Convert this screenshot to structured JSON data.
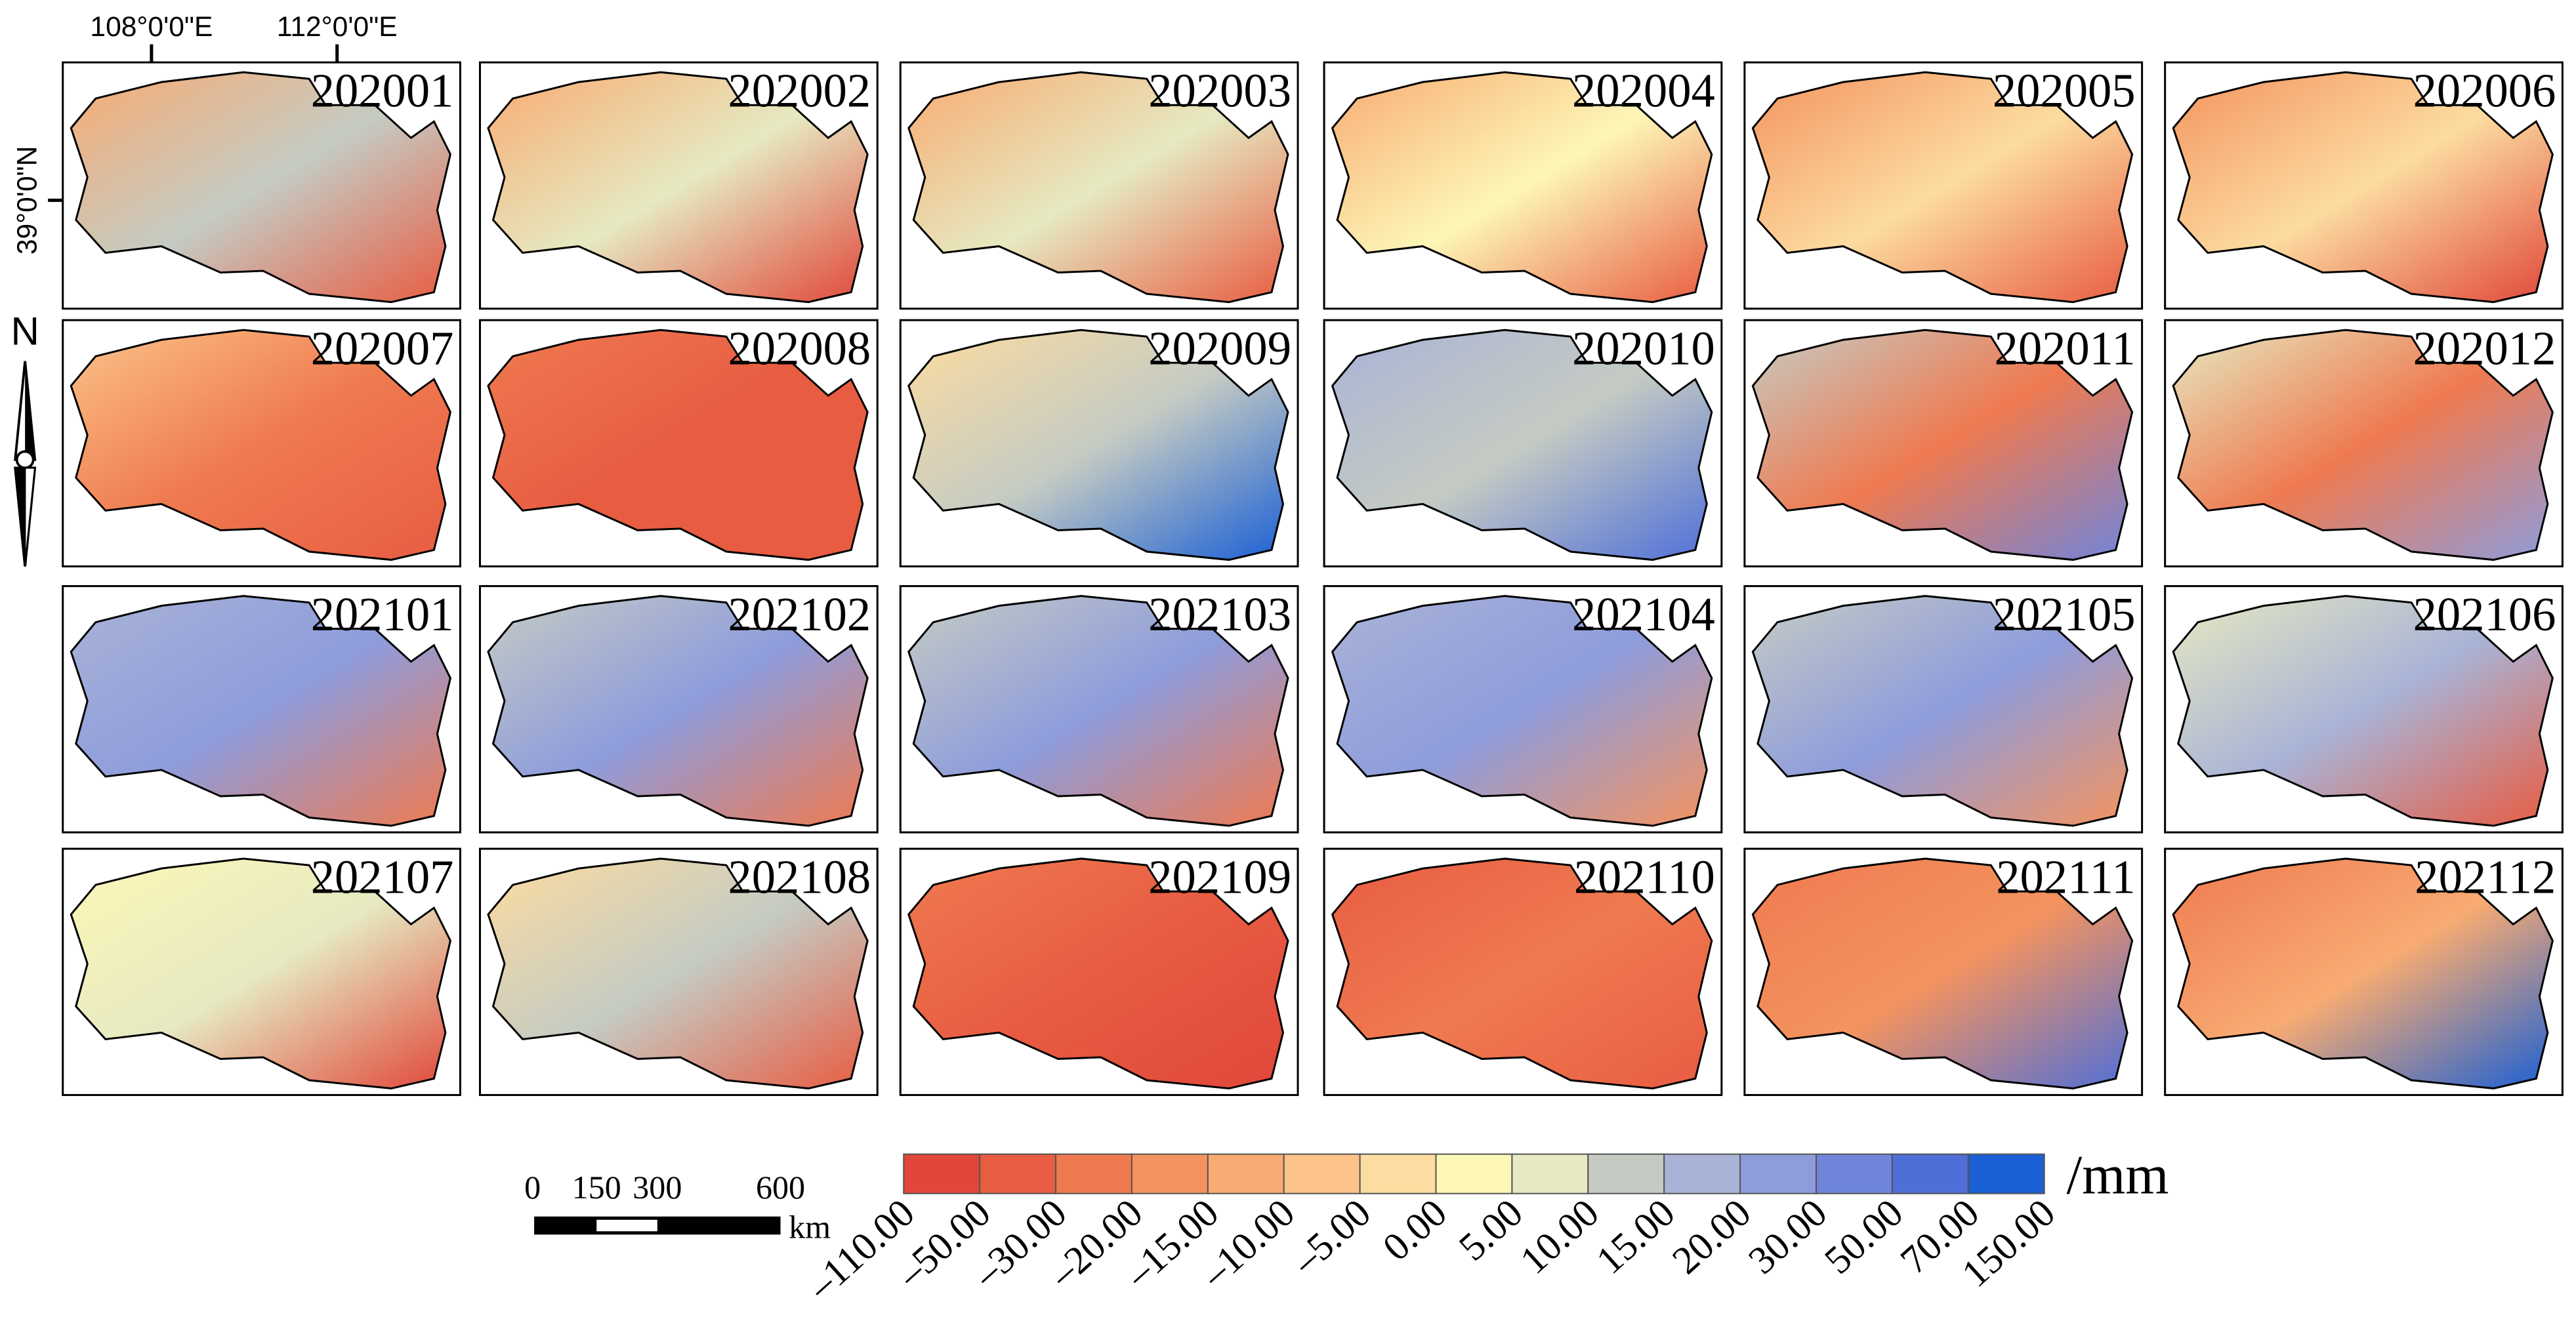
{
  "coordinates": {
    "lon_labels": [
      "108°0'0\"E",
      "112°0'0\"E"
    ],
    "lat_label": "39°0'0\"N"
  },
  "north_label": "N",
  "panels": [
    {
      "label": "202001"
    },
    {
      "label": "202002"
    },
    {
      "label": "202003"
    },
    {
      "label": "202004"
    },
    {
      "label": "202005"
    },
    {
      "label": "202006"
    },
    {
      "label": "202007"
    },
    {
      "label": "202008"
    },
    {
      "label": "202009"
    },
    {
      "label": "202010"
    },
    {
      "label": "202011"
    },
    {
      "label": "202012"
    },
    {
      "label": "202101"
    },
    {
      "label": "202102"
    },
    {
      "label": "202103"
    },
    {
      "label": "202104"
    },
    {
      "label": "202105"
    },
    {
      "label": "202106"
    },
    {
      "label": "202107"
    },
    {
      "label": "202108"
    },
    {
      "label": "202109"
    },
    {
      "label": "202110"
    },
    {
      "label": "202111"
    },
    {
      "label": "202112"
    }
  ],
  "scale_bar": {
    "labels": [
      "0",
      "150",
      "300",
      "600"
    ],
    "unit": "km"
  },
  "legend": {
    "colors": [
      "#e0473a",
      "#e85c42",
      "#ef7a50",
      "#f4935f",
      "#f8ab72",
      "#fbc388",
      "#fcdca0",
      "#fdf7b7",
      "#e6e9c1",
      "#c5cbc3",
      "#a9b3d6",
      "#8e9cdc",
      "#6f85dc",
      "#4f6fd8",
      "#1a5fd5"
    ],
    "labels": [
      "–110.00",
      "–50.00",
      "–30.00",
      "–20.00",
      "–15.00",
      "–10.00",
      "–5.00",
      "0.00",
      "5.00",
      "10.00",
      "15.00",
      "20.00",
      "30.00",
      "50.00",
      "70.00",
      "150.00"
    ],
    "unit": "/mm"
  }
}
